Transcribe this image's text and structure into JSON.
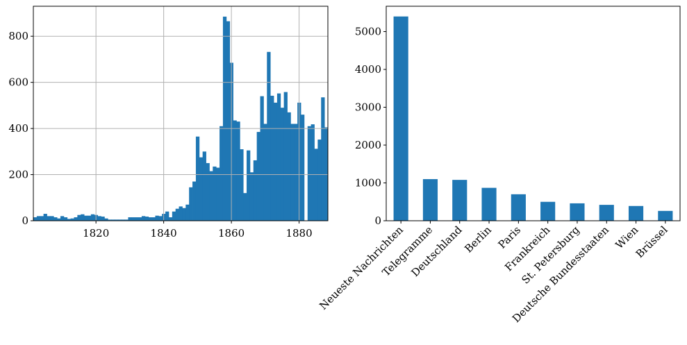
{
  "colors": {
    "bar": "#1f77b4",
    "grid": "#b0b0b0",
    "axis": "#000000"
  },
  "chart_data": [
    {
      "type": "bar",
      "subtype": "histogram",
      "title": "",
      "xlabel": "",
      "ylabel": "",
      "grid": true,
      "xlim": [
        1801.5,
        1888.5
      ],
      "ylim": [
        0,
        930
      ],
      "x_ticks": [
        1820,
        1840,
        1860,
        1880
      ],
      "x_tick_labels": [
        "1820",
        "1840",
        "1860",
        "1880"
      ],
      "y_ticks": [
        0,
        200,
        400,
        600,
        800
      ],
      "y_tick_labels": [
        "0",
        "200",
        "400",
        "600",
        "800"
      ],
      "bin_start": 1801.5,
      "bin_width": 1.0,
      "values": [
        15,
        20,
        20,
        30,
        20,
        20,
        15,
        10,
        20,
        15,
        8,
        10,
        15,
        25,
        28,
        22,
        22,
        28,
        25,
        20,
        18,
        10,
        5,
        5,
        5,
        5,
        5,
        5,
        15,
        15,
        15,
        15,
        20,
        18,
        15,
        15,
        22,
        20,
        30,
        40,
        15,
        40,
        52,
        62,
        55,
        70,
        145,
        170,
        365,
        275,
        300,
        250,
        215,
        235,
        230,
        410,
        885,
        865,
        685,
        435,
        430,
        310,
        120,
        305,
        210,
        262,
        385,
        540,
        420,
        732,
        542,
        512,
        552,
        490,
        558,
        470,
        420,
        420,
        512,
        460,
        0,
        410,
        418,
        312,
        352,
        535,
        405
      ]
    },
    {
      "type": "bar",
      "title": "",
      "xlabel": "",
      "ylabel": "",
      "grid": false,
      "ylim": [
        0,
        5670
      ],
      "y_ticks": [
        0,
        1000,
        2000,
        3000,
        4000,
        5000
      ],
      "y_tick_labels": [
        "0",
        "1000",
        "2000",
        "3000",
        "4000",
        "5000"
      ],
      "categories": [
        "Neueste Nachrichten",
        "Telegramme",
        "Deutschland",
        "Berlin",
        "Paris",
        "Frankreich",
        "St. Petersburg",
        "Deutsche Bundesstaaten",
        "Wien",
        "Brüssel"
      ],
      "values": [
        5400,
        1100,
        1080,
        870,
        700,
        500,
        460,
        420,
        390,
        260
      ]
    }
  ]
}
